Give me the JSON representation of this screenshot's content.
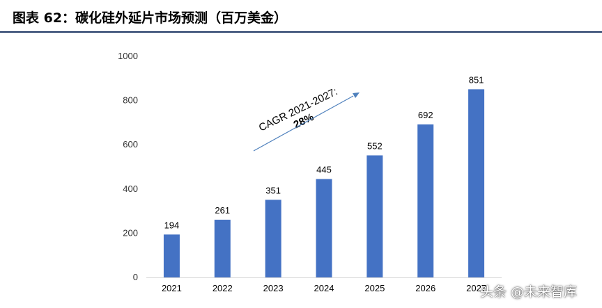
{
  "header": {
    "title": "图表 62：碳化硅外延片市场预测（百万美金）"
  },
  "chart_data": {
    "type": "bar",
    "categories": [
      "2021",
      "2022",
      "2023",
      "2024",
      "2025",
      "2026",
      "2027"
    ],
    "values": [
      194,
      261,
      351,
      445,
      552,
      692,
      851
    ],
    "ylim": [
      0,
      1000
    ],
    "yticks": [
      0,
      200,
      400,
      600,
      800,
      1000
    ],
    "bar_color": "#4472c4",
    "arrow_color": "#4f81bd",
    "grid": false,
    "annotation": {
      "text": "CAGR 2021-2027:",
      "value": "28%"
    }
  },
  "watermark": {
    "text": "头条 @未来智库"
  }
}
